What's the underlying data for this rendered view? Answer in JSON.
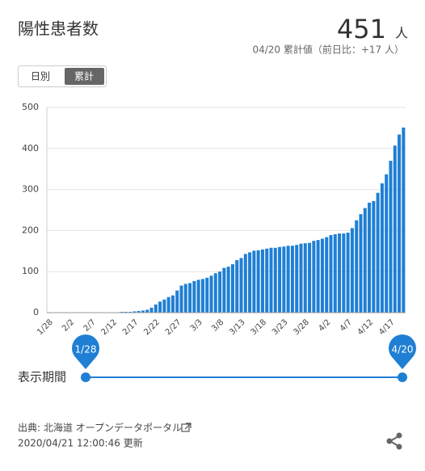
{
  "header": {
    "title": "陽性患者数",
    "total": 451,
    "unit": "人",
    "subtitle": "04/20 累計値（前日比：+17 人）"
  },
  "tabs": [
    "日別",
    "累計"
  ],
  "chart_data": {
    "type": "bar",
    "color": "#1f7fd4",
    "categories": [
      "1/28",
      null,
      null,
      null,
      null,
      "2/2",
      null,
      null,
      null,
      null,
      "2/7",
      null,
      null,
      null,
      null,
      "2/12",
      null,
      null,
      null,
      null,
      "2/17",
      null,
      null,
      null,
      null,
      "2/22",
      null,
      null,
      null,
      null,
      "2/27",
      null,
      null,
      null,
      null,
      "3/3",
      null,
      null,
      null,
      null,
      "3/8",
      null,
      null,
      null,
      null,
      "3/13",
      null,
      null,
      null,
      null,
      "3/18",
      null,
      null,
      null,
      null,
      "3/23",
      null,
      null,
      null,
      null,
      "3/28",
      null,
      null,
      null,
      null,
      "4/2",
      null,
      null,
      null,
      null,
      "4/7",
      null,
      null,
      null,
      null,
      "4/12",
      null,
      null,
      null,
      null,
      "4/17",
      null,
      null,
      null
    ],
    "values": [
      1,
      1,
      1,
      1,
      1,
      1,
      1,
      1,
      1,
      1,
      1,
      1,
      1,
      1,
      1,
      1,
      1,
      2,
      2,
      2,
      3,
      4,
      5,
      7,
      12,
      20,
      27,
      32,
      38,
      42,
      54,
      66,
      70,
      72,
      77,
      80,
      82,
      85,
      90,
      96,
      100,
      109,
      112,
      118,
      128,
      133,
      143,
      147,
      151,
      152,
      154,
      156,
      158,
      158,
      160,
      161,
      163,
      163,
      165,
      168,
      169,
      170,
      175,
      177,
      180,
      184,
      189,
      191,
      193,
      193,
      195,
      206,
      225,
      240,
      255,
      268,
      272,
      292,
      315,
      337,
      370,
      407,
      434,
      451
    ],
    "ylim": [
      0,
      500
    ],
    "yticks": [
      0,
      100,
      200,
      300,
      400,
      500
    ],
    "grid": true
  },
  "range": {
    "label": "表示期間",
    "start": "1/28",
    "end": "4/20"
  },
  "footer": {
    "source": "出典: 北海道 オープンデータポータル",
    "updated": "2020/04/21 12:00:46 更新"
  }
}
